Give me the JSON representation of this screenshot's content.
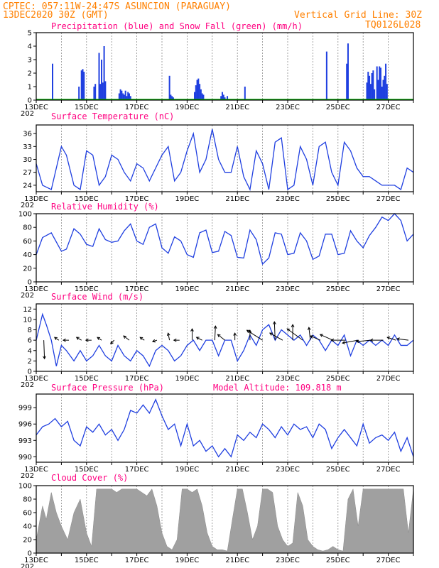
{
  "header": {
    "station": "CPTEC:  057:11W-24:47S  ASUNCION (PARAGUAY)",
    "run": "13DEC2020 30Z (GMT)",
    "grid_note": "Vertical Grid Line: 30Z",
    "model": "TQ0126L028",
    "year_stub": "202"
  },
  "colors": {
    "header": "#ff8000",
    "title": "#ff0080",
    "line": "#1f3fe0",
    "snow": "#00b000",
    "cloud": "#a0a0a0"
  },
  "date_ticks": [
    "13DEC",
    "15DEC",
    "17DEC",
    "19DEC",
    "21DEC",
    "23DEC",
    "25DEC",
    "27DEC"
  ],
  "chart_data": [
    {
      "id": "precip",
      "type": "bar",
      "title": "Precipitation (blue) and Snow Fall (green) (mm/h)",
      "ylim": [
        0,
        5
      ],
      "yticks": [
        "0",
        "1",
        "2",
        "3",
        "4",
        "5"
      ],
      "x_days": [
        0,
        15
      ],
      "grid": true,
      "series": [
        {
          "name": "Precipitation",
          "x": [
            0.65,
            1.7,
            1.8,
            1.85,
            1.9,
            2.3,
            2.35,
            2.5,
            2.55,
            2.6,
            2.65,
            2.7,
            2.75,
            3.3,
            3.35,
            3.4,
            3.45,
            3.5,
            3.55,
            3.6,
            3.65,
            3.7,
            3.75,
            5.3,
            5.35,
            5.4,
            5.45,
            6.3,
            6.35,
            6.4,
            6.45,
            6.5,
            6.55,
            6.6,
            6.65,
            7.35,
            7.4,
            7.45,
            7.5,
            7.6,
            8.3,
            11.55,
            12.35,
            12.4,
            13.15,
            13.2,
            13.25,
            13.3,
            13.35,
            13.4,
            13.45,
            13.55,
            13.6,
            13.65,
            13.7,
            13.75,
            13.8,
            13.85,
            13.9,
            13.95
          ],
          "values": [
            2.7,
            1.0,
            2.2,
            2.3,
            2.1,
            1.0,
            1.2,
            3.5,
            1.2,
            3.0,
            1.3,
            4.0,
            1.4,
            0.5,
            0.8,
            0.7,
            0.5,
            0.4,
            0.7,
            0.3,
            0.6,
            0.5,
            0.3,
            1.8,
            0.4,
            0.3,
            0.2,
            0.6,
            1.1,
            1.5,
            1.6,
            1.2,
            0.8,
            0.5,
            0.4,
            0.3,
            0.6,
            0.4,
            0.2,
            0.3,
            1.0,
            3.6,
            2.7,
            4.2,
            1.3,
            2.1,
            1.8,
            1.2,
            2.0,
            2.2,
            0.8,
            2.5,
            1.5,
            2.5,
            2.4,
            1.0,
            1.5,
            1.8,
            2.7,
            1.2
          ]
        },
        {
          "name": "Snow Fall",
          "x": [
            0,
            15
          ],
          "values": [
            0.05,
            0.05
          ]
        }
      ]
    },
    {
      "id": "temp",
      "type": "line",
      "title": "Surface Temperature (nC)",
      "ylim": [
        22.5,
        38
      ],
      "yticks": [
        "24",
        "27",
        "30",
        "33",
        "36"
      ],
      "x_days": [
        0,
        15
      ],
      "grid": true,
      "series": [
        {
          "x": [
            0,
            0.25,
            0.6,
            1.0,
            1.2,
            1.5,
            1.75,
            2.0,
            2.25,
            2.5,
            2.75,
            3.0,
            3.25,
            3.5,
            3.75,
            4.0,
            4.25,
            4.5,
            4.75,
            5.0,
            5.25,
            5.5,
            5.75,
            6.0,
            6.25,
            6.5,
            6.75,
            7.0,
            7.25,
            7.5,
            7.75,
            8.0,
            8.25,
            8.5,
            8.75,
            9.0,
            9.25,
            9.5,
            9.75,
            10.0,
            10.25,
            10.5,
            10.75,
            11.0,
            11.25,
            11.5,
            11.75,
            12.0,
            12.25,
            12.5,
            12.75,
            13.0,
            13.25,
            13.5,
            13.75,
            14.0,
            14.25,
            14.5,
            14.75,
            15.0
          ],
          "values": [
            29,
            24,
            23,
            33,
            31,
            24,
            23,
            32,
            31,
            24,
            26,
            31,
            30,
            27,
            25,
            29,
            28,
            25,
            28,
            31,
            33,
            25,
            27,
            32,
            36,
            27,
            30,
            37,
            30,
            27,
            27,
            33,
            26,
            23,
            32,
            29,
            23,
            34,
            35,
            23,
            24,
            33,
            30,
            24,
            33,
            34,
            27,
            24,
            34,
            32,
            28,
            26,
            26,
            25,
            24,
            24,
            24,
            23,
            28,
            27
          ]
        }
      ]
    },
    {
      "id": "rh",
      "type": "line",
      "title": "Relative Humidity (%)",
      "ylim": [
        0,
        100
      ],
      "yticks": [
        "0",
        "20",
        "40",
        "60",
        "80",
        "100"
      ],
      "x_days": [
        0,
        15
      ],
      "grid": true,
      "series": [
        {
          "x": [
            0,
            0.25,
            0.6,
            1.0,
            1.2,
            1.5,
            1.75,
            2.0,
            2.25,
            2.5,
            2.75,
            3.0,
            3.25,
            3.5,
            3.75,
            4.0,
            4.25,
            4.5,
            4.75,
            5.0,
            5.25,
            5.5,
            5.75,
            6.0,
            6.25,
            6.5,
            6.75,
            7.0,
            7.25,
            7.5,
            7.75,
            8.0,
            8.25,
            8.5,
            8.75,
            9.0,
            9.25,
            9.5,
            9.75,
            10.0,
            10.25,
            10.5,
            10.75,
            11.0,
            11.25,
            11.5,
            11.75,
            12.0,
            12.25,
            12.5,
            12.75,
            13.0,
            13.25,
            13.5,
            13.75,
            14.0,
            14.25,
            14.5,
            14.75,
            15.0
          ],
          "values": [
            40,
            65,
            72,
            45,
            48,
            78,
            70,
            55,
            52,
            78,
            62,
            58,
            60,
            75,
            85,
            60,
            55,
            80,
            85,
            50,
            42,
            66,
            60,
            40,
            36,
            72,
            76,
            43,
            45,
            74,
            68,
            36,
            35,
            76,
            62,
            26,
            35,
            72,
            70,
            40,
            42,
            72,
            60,
            33,
            38,
            70,
            70,
            40,
            42,
            75,
            60,
            50,
            68,
            80,
            95,
            90,
            100,
            90,
            60,
            70
          ]
        }
      ]
    },
    {
      "id": "wind",
      "type": "line",
      "title": "Surface Wind (m/s)",
      "ylim": [
        0,
        13
      ],
      "yticks": [
        "0",
        "2",
        "4",
        "6",
        "8",
        "10",
        "12"
      ],
      "x_days": [
        0,
        15
      ],
      "grid": true,
      "series": [
        {
          "x": [
            0,
            0.25,
            0.4,
            0.6,
            0.8,
            1.0,
            1.2,
            1.5,
            1.75,
            2.0,
            2.25,
            2.5,
            2.75,
            3.0,
            3.25,
            3.5,
            3.75,
            4.0,
            4.25,
            4.5,
            4.75,
            5.0,
            5.25,
            5.5,
            5.75,
            6.0,
            6.25,
            6.5,
            6.75,
            7.0,
            7.25,
            7.5,
            7.75,
            8.0,
            8.25,
            8.5,
            8.75,
            9.0,
            9.25,
            9.5,
            9.75,
            10.0,
            10.25,
            10.5,
            10.75,
            11.0,
            11.25,
            11.5,
            11.75,
            12.0,
            12.25,
            12.5,
            12.75,
            13.0,
            13.25,
            13.5,
            13.75,
            14.0,
            14.25,
            14.5,
            14.75,
            15.0
          ],
          "values": [
            6,
            11,
            9,
            6,
            1,
            5,
            4,
            2,
            4,
            2,
            3,
            5,
            3,
            2,
            5,
            3,
            2,
            4,
            3,
            1,
            4,
            5,
            4,
            2,
            3,
            5,
            6,
            4,
            6,
            6,
            3,
            6,
            6,
            2,
            4,
            7,
            5,
            8,
            9,
            6,
            8,
            7,
            6,
            7,
            5,
            7,
            6,
            4,
            6,
            5,
            7,
            3,
            6,
            5,
            6,
            5,
            6,
            5,
            7,
            5,
            5,
            6
          ]
        }
      ],
      "arrows": [
        {
          "day": 0.3,
          "dx": 1,
          "dy": 26
        },
        {
          "day": 0.9,
          "dx": -6,
          "dy": -4
        },
        {
          "day": 1.3,
          "dx": -8,
          "dy": 0
        },
        {
          "day": 1.8,
          "dx": -7,
          "dy": -4
        },
        {
          "day": 2.2,
          "dx": -8,
          "dy": 0
        },
        {
          "day": 2.6,
          "dx": -6,
          "dy": -4
        },
        {
          "day": 3.1,
          "dx": -5,
          "dy": 5
        },
        {
          "day": 3.7,
          "dx": -8,
          "dy": -6
        },
        {
          "day": 4.3,
          "dx": -6,
          "dy": -4
        },
        {
          "day": 4.8,
          "dx": -6,
          "dy": 2
        },
        {
          "day": 5.3,
          "dx": -2,
          "dy": -10
        },
        {
          "day": 5.7,
          "dx": -8,
          "dy": 0
        },
        {
          "day": 6.2,
          "dx": 0,
          "dy": -16
        },
        {
          "day": 6.6,
          "dx": -8,
          "dy": -4
        },
        {
          "day": 7.1,
          "dx": 1,
          "dy": -20
        },
        {
          "day": 7.5,
          "dx": -10,
          "dy": -8
        },
        {
          "day": 7.9,
          "dx": 0,
          "dy": -10
        },
        {
          "day": 8.5,
          "dx": 0,
          "dy": -14
        },
        {
          "day": 9.0,
          "dx": -22,
          "dy": -14
        },
        {
          "day": 9.5,
          "dx": -1,
          "dy": -26
        },
        {
          "day": 9.8,
          "dx": -18,
          "dy": -10
        },
        {
          "day": 10.2,
          "dx": 0,
          "dy": -22
        },
        {
          "day": 10.6,
          "dx": -22,
          "dy": -16
        },
        {
          "day": 10.9,
          "dx": -2,
          "dy": -18
        },
        {
          "day": 11.3,
          "dx": -14,
          "dy": -6
        },
        {
          "day": 11.8,
          "dx": -18,
          "dy": -8
        },
        {
          "day": 12.3,
          "dx": -20,
          "dy": 0
        },
        {
          "day": 12.8,
          "dx": -22,
          "dy": 4
        },
        {
          "day": 13.3,
          "dx": -20,
          "dy": 2
        },
        {
          "day": 13.8,
          "dx": -18,
          "dy": 0
        },
        {
          "day": 14.3,
          "dx": -12,
          "dy": -4
        },
        {
          "day": 14.8,
          "dx": -16,
          "dy": -2
        }
      ]
    },
    {
      "id": "pres",
      "type": "line",
      "title": "Surface Pressure (hPa)",
      "subtitle": "Model Altitude: 109.818 m",
      "ylim": [
        989,
        1001.5
      ],
      "yticks": [
        "990",
        "993",
        "996",
        "999"
      ],
      "x_days": [
        0,
        15
      ],
      "grid": true,
      "series": [
        {
          "x": [
            0,
            0.25,
            0.5,
            0.75,
            1.0,
            1.25,
            1.5,
            1.75,
            2.0,
            2.25,
            2.5,
            2.75,
            3.0,
            3.25,
            3.5,
            3.75,
            4.0,
            4.25,
            4.5,
            4.75,
            5.0,
            5.25,
            5.5,
            5.75,
            6.0,
            6.25,
            6.5,
            6.75,
            7.0,
            7.25,
            7.5,
            7.75,
            8.0,
            8.25,
            8.5,
            8.75,
            9.0,
            9.25,
            9.5,
            9.75,
            10.0,
            10.25,
            10.5,
            10.75,
            11.0,
            11.25,
            11.5,
            11.75,
            12.0,
            12.25,
            12.5,
            12.75,
            13.0,
            13.25,
            13.5,
            13.75,
            14.0,
            14.25,
            14.5,
            14.75,
            15.0
          ],
          "values": [
            994,
            995.5,
            996,
            997,
            995.5,
            996.5,
            993,
            992,
            995.5,
            994.5,
            996,
            994,
            995,
            993,
            995,
            998.5,
            998,
            999.5,
            998,
            1000.5,
            997.5,
            995,
            996,
            992,
            996,
            992,
            993,
            991,
            992,
            990,
            991.5,
            990,
            994,
            993,
            994.5,
            993.5,
            996,
            995,
            993.5,
            995.5,
            994,
            996,
            995,
            995.5,
            993.5,
            996,
            995,
            991.5,
            993.5,
            995,
            993.5,
            992,
            996,
            992.5,
            993.5,
            994,
            993,
            994.5,
            991,
            993.5,
            990
          ]
        }
      ]
    },
    {
      "id": "cloud",
      "type": "area",
      "title": "Cloud Cover (%)",
      "ylim": [
        0,
        100
      ],
      "yticks": [
        "0",
        "20",
        "40",
        "60",
        "80",
        "100"
      ],
      "x_days": [
        0,
        15
      ],
      "grid": true,
      "series": [
        {
          "x": [
            0,
            0.25,
            0.4,
            0.6,
            0.8,
            1.0,
            1.25,
            1.5,
            1.75,
            2.0,
            2.2,
            2.4,
            2.6,
            2.8,
            3.0,
            3.2,
            3.4,
            3.6,
            3.8,
            4.0,
            4.2,
            4.4,
            4.6,
            4.8,
            5.0,
            5.2,
            5.4,
            5.6,
            5.8,
            6.0,
            6.2,
            6.4,
            6.6,
            6.8,
            7.0,
            7.2,
            7.4,
            7.6,
            7.8,
            8.0,
            8.2,
            8.4,
            8.6,
            8.8,
            9.0,
            9.2,
            9.4,
            9.6,
            9.8,
            10.0,
            10.2,
            10.4,
            10.6,
            10.8,
            11.0,
            11.2,
            11.4,
            11.6,
            11.8,
            12.0,
            12.2,
            12.4,
            12.6,
            12.8,
            13.0,
            13.2,
            13.4,
            13.6,
            13.8,
            14.0,
            14.2,
            14.4,
            14.6,
            14.8,
            15.0
          ],
          "values": [
            20,
            70,
            50,
            90,
            60,
            40,
            20,
            60,
            80,
            30,
            10,
            95,
            95,
            95,
            95,
            90,
            95,
            95,
            95,
            95,
            90,
            85,
            95,
            70,
            30,
            10,
            5,
            20,
            95,
            95,
            90,
            95,
            70,
            30,
            10,
            5,
            5,
            3,
            50,
            95,
            95,
            60,
            20,
            40,
            95,
            95,
            90,
            40,
            20,
            10,
            15,
            90,
            70,
            20,
            10,
            5,
            3,
            5,
            10,
            5,
            3,
            80,
            95,
            40,
            95,
            95,
            95,
            95,
            95,
            95,
            95,
            95,
            95,
            30,
            95
          ]
        }
      ]
    }
  ]
}
